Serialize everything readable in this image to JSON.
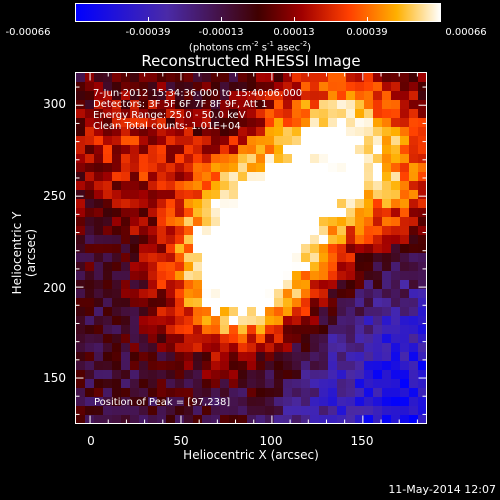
{
  "colorbar": {
    "ticks": [
      "-0.00066",
      "-0.00039",
      "-0.00013",
      "0.00013",
      "0.00039",
      "0.00066"
    ],
    "unit_prefix": "(photons cm",
    "unit_exp1": "-2",
    "unit_mid": " s",
    "unit_exp2": "-1",
    "unit_mid2": " asec",
    "unit_exp3": "-2",
    "unit_suffix": ")",
    "range": [
      -0.00066,
      0.00066
    ]
  },
  "chart_data": {
    "type": "heatmap",
    "title": "Reconstructed RHESSI Image",
    "xlabel": "Heliocentric X (arcsec)",
    "ylabel": "Heliocentric Y (arcsec)",
    "xlim": [
      -8,
      185
    ],
    "ylim": [
      125,
      318
    ],
    "x_ticks": [
      "0",
      "50",
      "100",
      "150"
    ],
    "y_ticks": [
      "150",
      "200",
      "250",
      "300"
    ],
    "annotations": {
      "time": "7-Jun-2012 15:34:36.000 to 15:40:06.000",
      "detectors": "Detectors: 3F 5F 6F 7F 8F 9F, Att 1",
      "energy": "Energy Range: 25.0 - 50.0 keV",
      "clean": "Clean    Total counts: 1.01E+04",
      "peak": "Position of Peak = [97,238]"
    },
    "peak_position": [
      97,
      238
    ],
    "sources": [
      {
        "x": 97,
        "y": 238,
        "relative_intensity": 1.0
      },
      {
        "x": 82,
        "y": 203,
        "relative_intensity": 0.98
      },
      {
        "x": 135,
        "y": 285,
        "relative_intensity": 0.72
      },
      {
        "x": 162,
        "y": 258,
        "relative_intensity": 0.5
      },
      {
        "x": 20,
        "y": 275,
        "relative_intensity": 0.4
      }
    ]
  },
  "footer": {
    "date": "11-May-2014 12:07"
  }
}
